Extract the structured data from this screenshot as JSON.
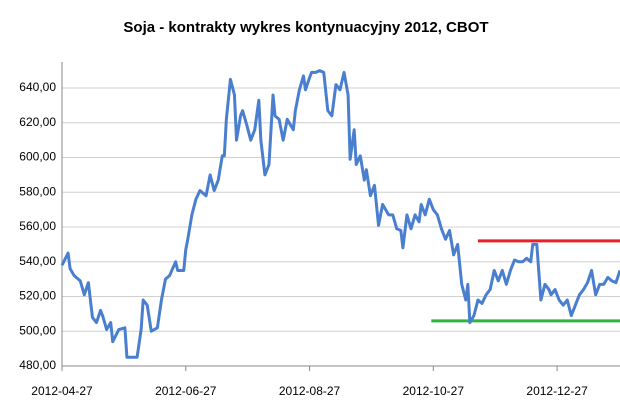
{
  "chart_data": {
    "type": "line",
    "title": "Soja - kontrakty wykres kontynuacyjny 2012, CBOT",
    "x": [
      "2012-04-27",
      "2012-04-30",
      "2012-05-01",
      "2012-05-03",
      "2012-05-06",
      "2012-05-08",
      "2012-05-10",
      "2012-05-12",
      "2012-05-14",
      "2012-05-16",
      "2012-05-17",
      "2012-05-19",
      "2012-05-21",
      "2012-05-22",
      "2012-05-25",
      "2012-05-28",
      "2012-05-29",
      "2012-06-01",
      "2012-06-03",
      "2012-06-05",
      "2012-06-06",
      "2012-06-08",
      "2012-06-10",
      "2012-06-13",
      "2012-06-15",
      "2012-06-17",
      "2012-06-19",
      "2012-06-22",
      "2012-06-23",
      "2012-06-26",
      "2012-06-27",
      "2012-06-28",
      "2012-06-30",
      "2012-07-02",
      "2012-07-04",
      "2012-07-07",
      "2012-07-09",
      "2012-07-11",
      "2012-07-13",
      "2012-07-15",
      "2012-07-16",
      "2012-07-17",
      "2012-07-19",
      "2012-07-21",
      "2012-07-22",
      "2012-07-24",
      "2012-07-25",
      "2012-07-27",
      "2012-07-29",
      "2012-07-31",
      "2012-08-02",
      "2012-08-03",
      "2012-08-05",
      "2012-08-07",
      "2012-08-09",
      "2012-08-10",
      "2012-08-12",
      "2012-08-14",
      "2012-08-16",
      "2012-08-19",
      "2012-08-20",
      "2012-08-22",
      "2012-08-24",
      "2012-08-25",
      "2012-08-27",
      "2012-08-28",
      "2012-08-30",
      "2012-09-01",
      "2012-09-03",
      "2012-09-05",
      "2012-09-07",
      "2012-09-09",
      "2012-09-11",
      "2012-09-13",
      "2012-09-15",
      "2012-09-16",
      "2012-09-18",
      "2012-09-19",
      "2012-09-21",
      "2012-09-23",
      "2012-09-24",
      "2012-09-26",
      "2012-09-28",
      "2012-09-30",
      "2012-10-02",
      "2012-10-04",
      "2012-10-05",
      "2012-10-07",
      "2012-10-09",
      "2012-10-11",
      "2012-10-12",
      "2012-10-14",
      "2012-10-16",
      "2012-10-18",
      "2012-10-20",
      "2012-10-21",
      "2012-10-23",
      "2012-10-25",
      "2012-10-27",
      "2012-10-29",
      "2012-10-31",
      "2012-11-02",
      "2012-11-04",
      "2012-11-06",
      "2012-11-08",
      "2012-11-10",
      "2012-11-12",
      "2012-11-13",
      "2012-11-14",
      "2012-11-16",
      "2012-11-18",
      "2012-11-20",
      "2012-11-22",
      "2012-11-24",
      "2012-11-26",
      "2012-11-28",
      "2012-11-30",
      "2012-12-02",
      "2012-12-04",
      "2012-12-06",
      "2012-12-08",
      "2012-12-10",
      "2012-12-12",
      "2012-12-14",
      "2012-12-15",
      "2012-12-17",
      "2012-12-19",
      "2012-12-21",
      "2012-12-23",
      "2012-12-24",
      "2012-12-26",
      "2012-12-28",
      "2012-12-30",
      "2013-01-01",
      "2013-01-03",
      "2013-01-05",
      "2013-01-07",
      "2013-01-09",
      "2013-01-11",
      "2013-01-13",
      "2013-01-15",
      "2013-01-17",
      "2013-01-19",
      "2013-01-21",
      "2013-01-23",
      "2013-01-25",
      "2013-01-27"
    ],
    "series": [
      {
        "color": "#4a7fcf",
        "values": [
          538,
          545,
          536,
          532,
          529,
          521,
          528,
          508,
          505,
          512,
          509,
          501,
          505,
          494,
          501,
          502,
          485,
          485,
          485,
          501,
          518,
          515,
          500,
          502,
          518,
          530,
          532,
          540,
          535,
          535,
          547,
          553,
          567,
          576,
          581,
          578,
          590,
          581,
          587,
          601,
          601,
          622,
          645,
          636,
          610,
          624,
          627,
          619,
          610,
          616,
          633,
          610,
          590,
          596,
          636,
          624,
          622,
          610,
          622,
          616,
          627,
          639,
          647,
          639,
          646,
          649,
          649,
          650,
          649,
          627,
          624,
          642,
          639,
          649,
          636,
          599,
          616,
          596,
          601,
          587,
          593,
          578,
          584,
          561,
          573,
          569,
          567,
          567,
          559,
          558,
          548,
          567,
          559,
          567,
          563,
          573,
          567,
          576,
          570,
          567,
          559,
          553,
          558,
          544,
          550,
          527,
          518,
          527,
          505,
          509,
          518,
          516,
          521,
          524,
          535,
          529,
          535,
          527,
          535,
          541,
          540,
          540,
          542,
          540,
          550,
          550,
          518,
          527,
          524,
          521,
          524,
          518,
          515,
          518,
          509,
          515,
          521,
          524,
          528,
          535,
          521,
          527,
          527,
          531,
          529,
          528,
          535
        ]
      }
    ],
    "hlines": [
      {
        "y": 552,
        "from": "2012-11-18",
        "to": "2013-01-27",
        "color": "#e8202a"
      },
      {
        "y": 506,
        "from": "2012-10-26",
        "to": "2013-01-27",
        "color": "#2db83a"
      }
    ],
    "xlim": [
      "2012-04-27",
      "2013-01-27"
    ],
    "xticks": [
      "2012-04-27",
      "2012-06-27",
      "2012-08-27",
      "2012-10-27",
      "2012-12-27"
    ],
    "ylim": [
      480,
      655
    ],
    "yticks": [
      {
        "value": 480,
        "label": "480,00"
      },
      {
        "value": 500,
        "label": "500,00"
      },
      {
        "value": 520,
        "label": "520,00"
      },
      {
        "value": 540,
        "label": "540,00"
      },
      {
        "value": 560,
        "label": "560,00"
      },
      {
        "value": 580,
        "label": "580,00"
      },
      {
        "value": 600,
        "label": "600,00"
      },
      {
        "value": 620,
        "label": "620,00"
      },
      {
        "value": 640,
        "label": "640,00"
      }
    ],
    "grid": true
  }
}
